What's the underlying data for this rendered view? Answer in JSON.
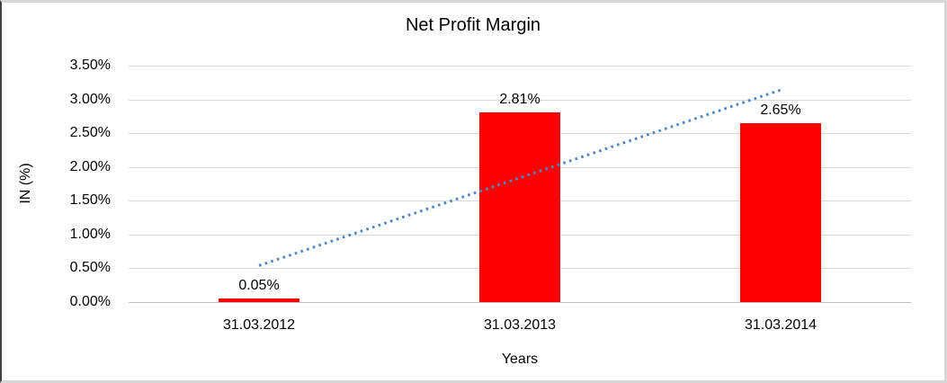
{
  "chart_data": {
    "type": "bar",
    "title": "Net Profit Margin",
    "xlabel": "Years",
    "ylabel": "IN (%)",
    "categories": [
      "31.03.2012",
      "31.03.2013",
      "31.03.2014"
    ],
    "values": [
      0.05,
      2.81,
      2.65
    ],
    "value_labels": [
      "0.05%",
      "2.81%",
      "2.65%"
    ],
    "y_ticks_bottom_to_top": [
      "0.00%",
      "0.50%",
      "1.00%",
      "1.50%",
      "2.00%",
      "2.50%",
      "3.00%",
      "3.50%"
    ],
    "ylim": [
      0,
      3.5
    ],
    "y_tick_step": 0.5,
    "grid": true,
    "legend": "none",
    "bar_color": "#ff0000",
    "gridline_color": "#d9d9d9",
    "trendline": {
      "type": "linear",
      "style": "dotted",
      "color": "#4f86c6",
      "start_category_index": 0,
      "end_category_index": 2,
      "start_value": 0.54,
      "end_value": 3.14
    }
  }
}
